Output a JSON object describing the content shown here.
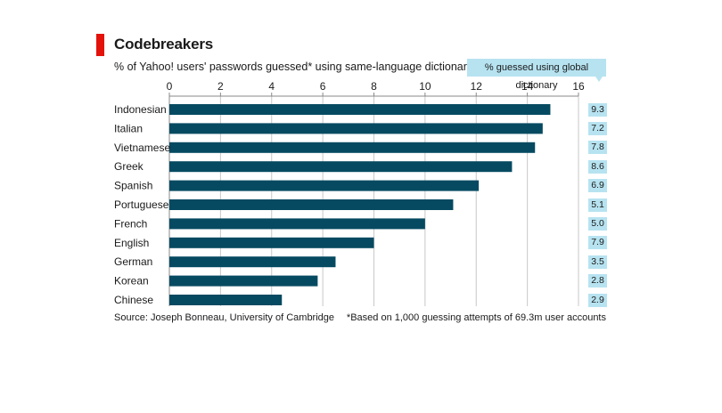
{
  "header": {
    "title": "Codebreakers",
    "subtitle": "% of Yahoo! users' passwords guessed* using same-language dictionary",
    "global_label": "% guessed using global dictionary"
  },
  "footer": {
    "source": "Source: Joseph Bonneau, University of Cambridge",
    "footnote": "*Based on 1,000 guessing attempts of 69.3m user accounts"
  },
  "colors": {
    "bar": "#064a61",
    "grid": "#c8c8c8",
    "highlight": "#b7e3f1",
    "accent": "#e3120b"
  },
  "chart_data": {
    "type": "bar",
    "orientation": "horizontal",
    "categories": [
      "Indonesian",
      "Italian",
      "Vietnamese",
      "Greek",
      "Spanish",
      "Portuguese",
      "French",
      "English",
      "German",
      "Korean",
      "Chinese"
    ],
    "series": [
      {
        "name": "same-language dictionary",
        "values": [
          14.9,
          14.6,
          14.3,
          13.4,
          12.1,
          11.1,
          10.0,
          8.0,
          6.5,
          5.8,
          4.4
        ]
      },
      {
        "name": "% guessed using global dictionary",
        "values": [
          9.3,
          7.2,
          7.8,
          8.6,
          6.9,
          5.1,
          5.0,
          7.9,
          3.5,
          2.8,
          2.9
        ]
      }
    ],
    "global_labels": [
      "9.3",
      "7.2",
      "7.8",
      "8.6",
      "6.9",
      "5.1",
      "5.0",
      "7.9",
      "3.5",
      "2.8",
      "2.9"
    ],
    "xticks": [
      "0",
      "2",
      "4",
      "6",
      "8",
      "10",
      "12",
      "14",
      "16"
    ],
    "xlim": [
      0,
      16
    ],
    "grid": true,
    "axis_position": "top"
  }
}
